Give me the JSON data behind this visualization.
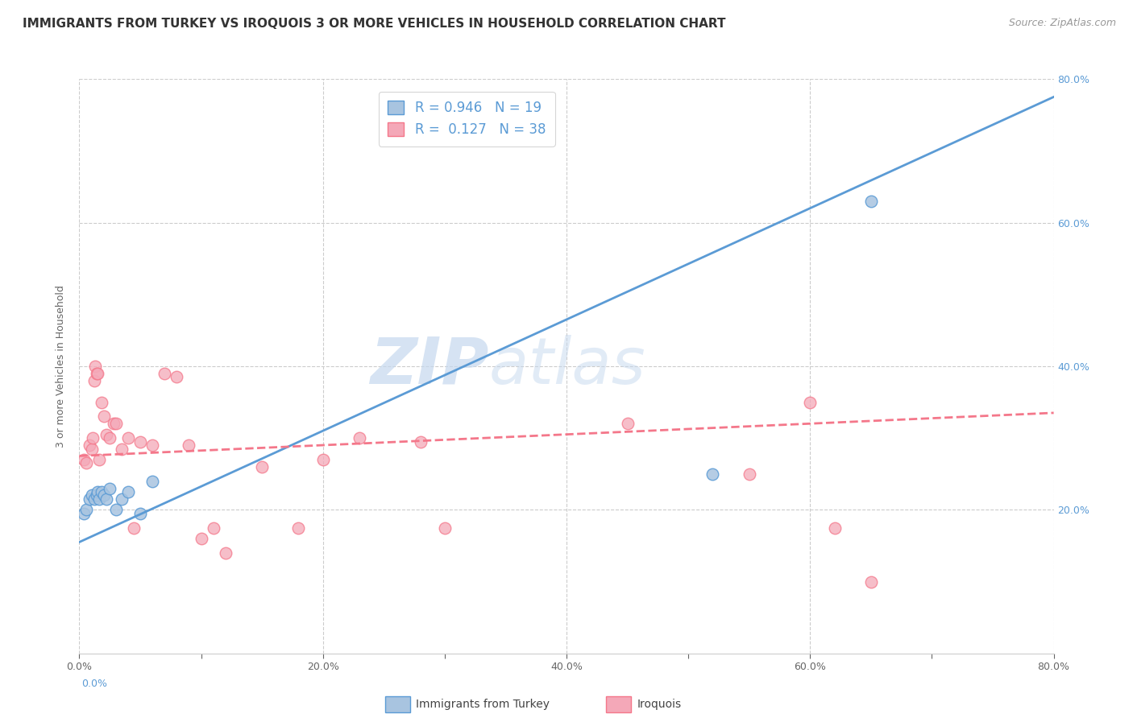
{
  "title": "IMMIGRANTS FROM TURKEY VS IROQUOIS 3 OR MORE VEHICLES IN HOUSEHOLD CORRELATION CHART",
  "source": "Source: ZipAtlas.com",
  "ylabel": "3 or more Vehicles in Household",
  "xlim": [
    0.0,
    0.8
  ],
  "ylim": [
    0.0,
    0.8
  ],
  "xtick_labels": [
    "0.0%",
    "",
    "20.0%",
    "",
    "40.0%",
    "",
    "60.0%",
    "",
    "80.0%"
  ],
  "xtick_values": [
    0.0,
    0.1,
    0.2,
    0.3,
    0.4,
    0.5,
    0.6,
    0.7,
    0.8
  ],
  "ytick_labels_right": [
    "20.0%",
    "40.0%",
    "60.0%",
    "80.0%"
  ],
  "ytick_values": [
    0.2,
    0.4,
    0.6,
    0.8
  ],
  "watermark_zip": "ZIP",
  "watermark_atlas": "atlas",
  "legend_line1": "R = 0.946   N = 19",
  "legend_line2": "R =  0.127   N = 38",
  "blue_scatter_x": [
    0.004,
    0.006,
    0.008,
    0.01,
    0.012,
    0.014,
    0.015,
    0.016,
    0.018,
    0.02,
    0.022,
    0.025,
    0.03,
    0.035,
    0.04,
    0.05,
    0.06,
    0.52,
    0.65
  ],
  "blue_scatter_y": [
    0.195,
    0.2,
    0.215,
    0.22,
    0.215,
    0.22,
    0.225,
    0.215,
    0.225,
    0.22,
    0.215,
    0.23,
    0.2,
    0.215,
    0.225,
    0.195,
    0.24,
    0.25,
    0.63
  ],
  "pink_scatter_x": [
    0.004,
    0.006,
    0.008,
    0.01,
    0.011,
    0.012,
    0.013,
    0.014,
    0.015,
    0.016,
    0.018,
    0.02,
    0.022,
    0.025,
    0.028,
    0.03,
    0.035,
    0.04,
    0.045,
    0.05,
    0.06,
    0.07,
    0.08,
    0.09,
    0.1,
    0.11,
    0.12,
    0.15,
    0.18,
    0.2,
    0.23,
    0.28,
    0.3,
    0.45,
    0.55,
    0.6,
    0.62,
    0.65
  ],
  "pink_scatter_y": [
    0.27,
    0.265,
    0.29,
    0.285,
    0.3,
    0.38,
    0.4,
    0.39,
    0.39,
    0.27,
    0.35,
    0.33,
    0.305,
    0.3,
    0.32,
    0.32,
    0.285,
    0.3,
    0.175,
    0.295,
    0.29,
    0.39,
    0.385,
    0.29,
    0.16,
    0.175,
    0.14,
    0.26,
    0.175,
    0.27,
    0.3,
    0.295,
    0.175,
    0.32,
    0.25,
    0.35,
    0.175,
    0.1
  ],
  "blue_line_x": [
    0.0,
    0.8
  ],
  "blue_line_y": [
    0.155,
    0.775
  ],
  "pink_line_x": [
    0.0,
    0.8
  ],
  "pink_line_y": [
    0.275,
    0.335
  ],
  "blue_color": "#5b9bd5",
  "pink_color": "#f4778a",
  "blue_fill": "#a8c4e0",
  "pink_fill": "#f4a8b8",
  "background_color": "#ffffff",
  "grid_color": "#cccccc",
  "title_fontsize": 11,
  "source_fontsize": 9,
  "legend_label1": "Immigrants from Turkey",
  "legend_label2": "Iroquois"
}
